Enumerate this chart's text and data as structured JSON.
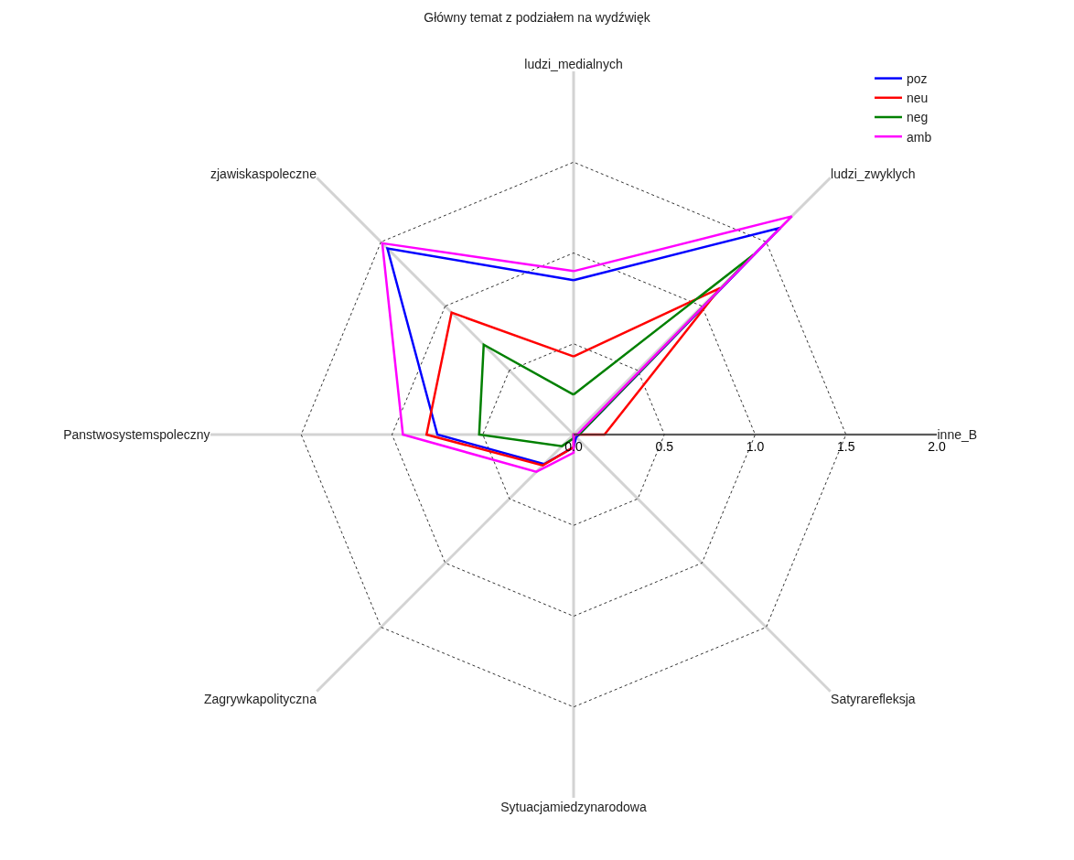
{
  "chart_data": {
    "type": "radar",
    "title": "Główny temat z podziałem na wydźwięk",
    "categories": [
      "ludzi_medialnych",
      "ludzi_zwyklych",
      "inne_B",
      "Satyrarefleksja",
      "Sytuacjamiedzynarodowa",
      "Zagrywkapolityczna",
      "Panstwosystemspoleczny",
      "zjawiskaspoleczne"
    ],
    "series": [
      {
        "name": "poz",
        "color": "#0000ff",
        "values": [
          0.85,
          1.61,
          0.03,
          0.02,
          0.07,
          0.23,
          0.75,
          1.45
        ]
      },
      {
        "name": "neu",
        "color": "#ff0000",
        "values": [
          0.43,
          1.14,
          0.17,
          0.0,
          0.07,
          0.24,
          0.81,
          0.95
        ]
      },
      {
        "name": "neg",
        "color": "#008000",
        "values": [
          0.22,
          1.4,
          0.03,
          0.0,
          0.02,
          0.09,
          0.52,
          0.7
        ]
      },
      {
        "name": "amb",
        "color": "#ff00ff",
        "values": [
          0.9,
          1.7,
          0.02,
          0.0,
          0.1,
          0.29,
          0.94,
          1.49
        ]
      }
    ],
    "ylim": [
      0,
      2
    ],
    "yticks": [
      {
        "value": 0,
        "label": "0.0"
      },
      {
        "value": 0.5,
        "label": "0.5"
      },
      {
        "value": 1,
        "label": "1.0"
      },
      {
        "value": 1.5,
        "label": "1.5"
      },
      {
        "value": 2,
        "label": "2.0"
      }
    ],
    "grid": true,
    "legend": "top right",
    "marker": "none",
    "line_style": "solid"
  }
}
